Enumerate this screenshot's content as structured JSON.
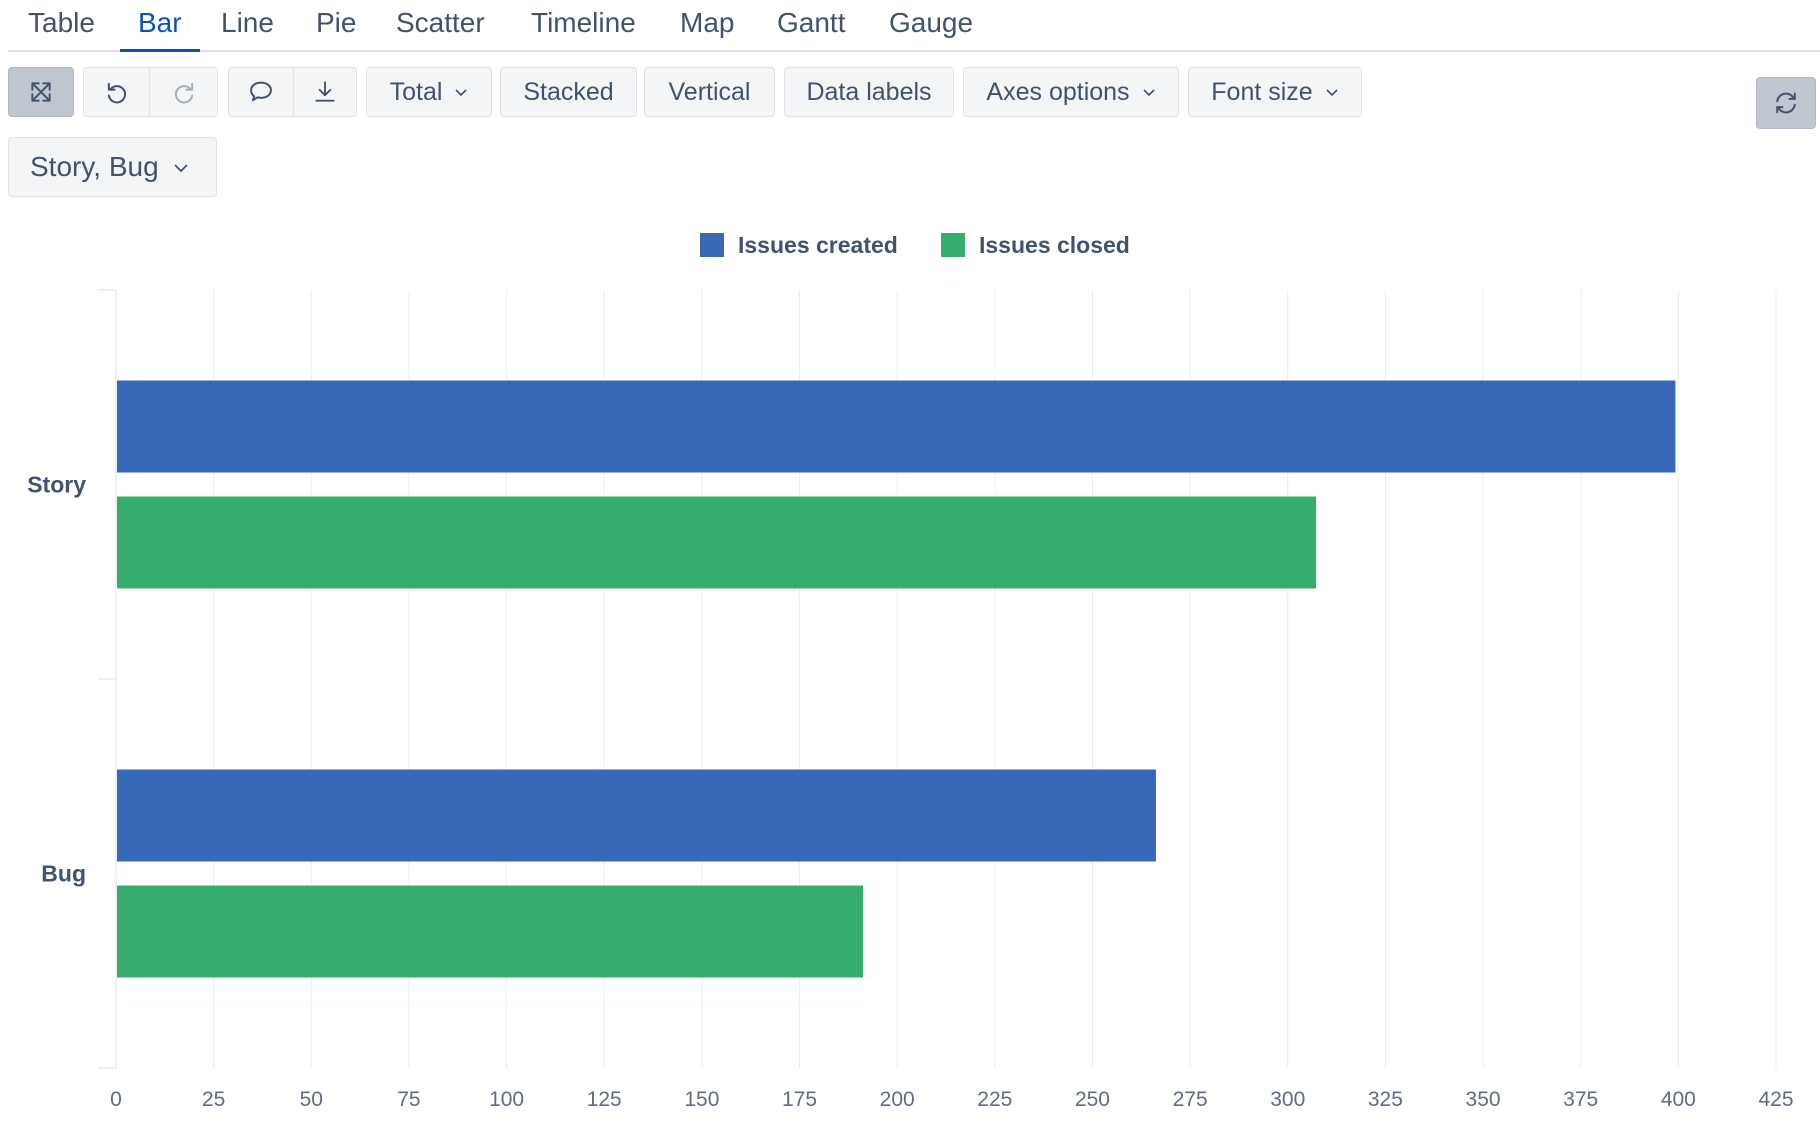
{
  "tabs": [
    {
      "label": "Table",
      "active": false
    },
    {
      "label": "Bar",
      "active": true
    },
    {
      "label": "Line",
      "active": false
    },
    {
      "label": "Pie",
      "active": false
    },
    {
      "label": "Scatter",
      "active": false
    },
    {
      "label": "Timeline",
      "active": false
    },
    {
      "label": "Map",
      "active": false
    },
    {
      "label": "Gantt",
      "active": false
    },
    {
      "label": "Gauge",
      "active": false
    }
  ],
  "toolbar": {
    "fullscreen_icon": "expand-icon",
    "undo_icon": "undo-icon",
    "redo_icon": "redo-icon",
    "comment_icon": "comment-icon",
    "download_icon": "download-icon",
    "refresh_icon": "refresh-icon",
    "total_label": "Total",
    "stacked_label": "Stacked",
    "vertical_label": "Vertical",
    "data_labels_label": "Data labels",
    "axes_options_label": "Axes options",
    "font_size_label": "Font size"
  },
  "filter": {
    "value": "Story, Bug"
  },
  "colors": {
    "created": "#3869b8",
    "closed": "#36ad6d",
    "active_tab": "#0b52b8"
  },
  "chart_data": {
    "type": "bar",
    "orientation": "horizontal",
    "categories": [
      "Story",
      "Bug"
    ],
    "series": [
      {
        "name": "Issues created",
        "values": [
          399,
          266
        ]
      },
      {
        "name": "Issues closed",
        "values": [
          307,
          191
        ]
      }
    ],
    "xlim": [
      0,
      425
    ],
    "xticks": [
      0,
      25,
      50,
      75,
      100,
      125,
      150,
      175,
      200,
      225,
      250,
      275,
      300,
      325,
      350,
      375,
      400,
      425
    ],
    "grid": true,
    "legend_position": "top"
  }
}
